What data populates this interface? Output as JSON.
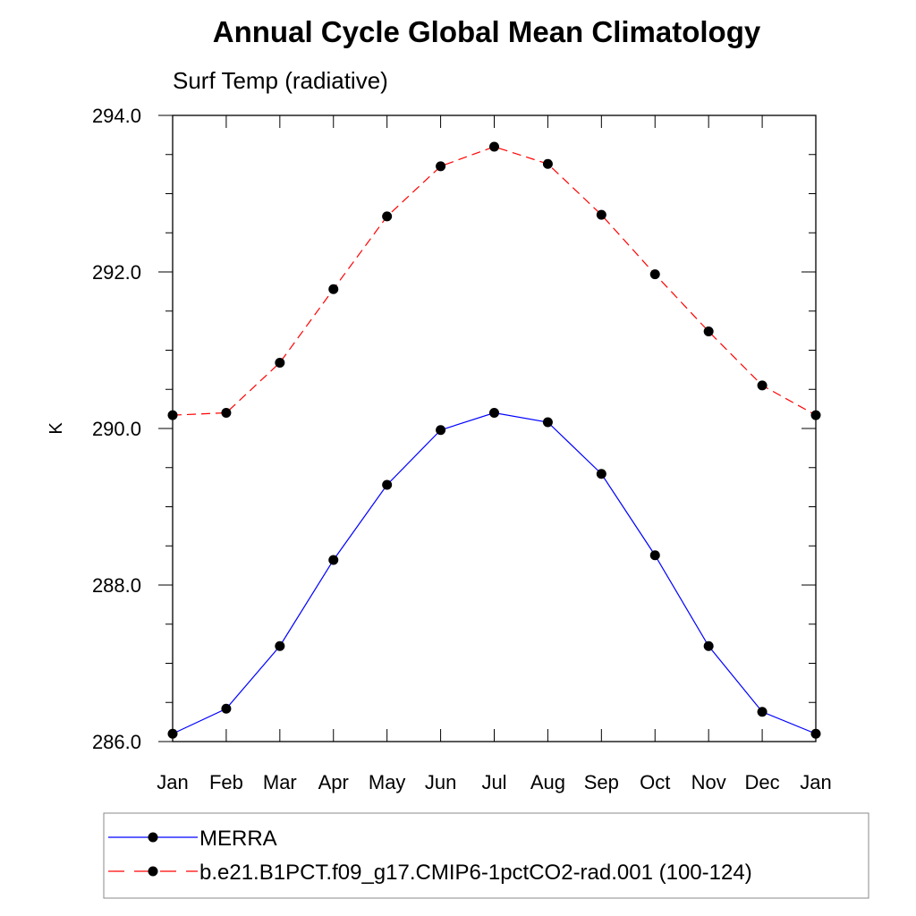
{
  "chart_data": {
    "type": "line",
    "title": "Annual Cycle Global Mean Climatology",
    "subtitle": "Surf Temp (radiative)",
    "xlabel": "",
    "ylabel": "K",
    "categories": [
      "Jan",
      "Feb",
      "Mar",
      "Apr",
      "May",
      "Jun",
      "Jul",
      "Aug",
      "Sep",
      "Oct",
      "Nov",
      "Dec",
      "Jan"
    ],
    "ylim": [
      286.0,
      294.0
    ],
    "yticks": [
      "286.0",
      "288.0",
      "290.0",
      "292.0",
      "294.0"
    ],
    "grid": false,
    "legend_position": "bottom",
    "series": [
      {
        "name": "MERRA",
        "color": "#0000ff",
        "line_style": "solid",
        "marker": "filled-circle",
        "values": [
          286.1,
          286.42,
          287.22,
          288.32,
          289.28,
          289.98,
          290.2,
          290.08,
          289.42,
          288.38,
          287.22,
          286.38,
          286.1
        ]
      },
      {
        "name": "b.e21.B1PCT.f09_g17.CMIP6-1pctCO2-rad.001 (100-124)",
        "color": "#ff0000",
        "line_style": "dashed",
        "marker": "filled-circle",
        "values": [
          290.17,
          290.2,
          290.84,
          291.78,
          292.71,
          293.35,
          293.6,
          293.38,
          292.73,
          291.97,
          291.24,
          290.55,
          290.17
        ]
      }
    ]
  }
}
